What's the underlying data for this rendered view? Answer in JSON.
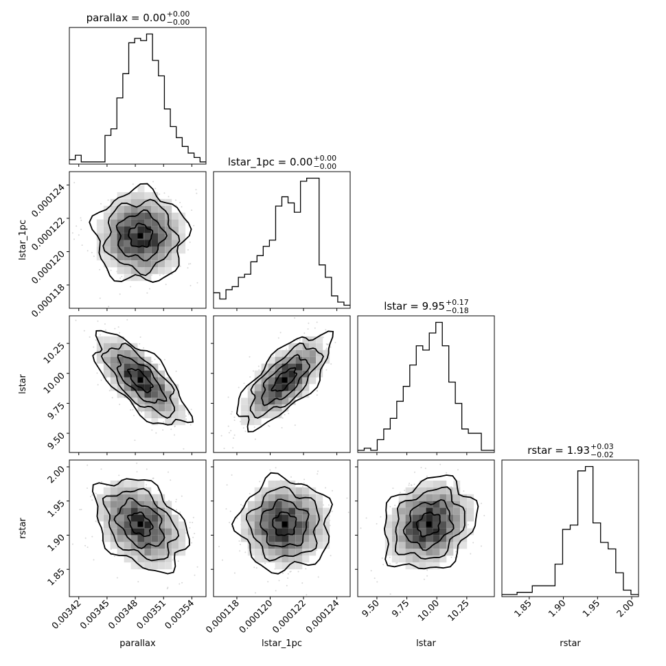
{
  "chart_data": {
    "type": "corner",
    "parameters": [
      {
        "name": "parallax",
        "range": [
          0.00341,
          0.003555
        ],
        "ticks": [
          "0.00342",
          "0.00345",
          "0.00348",
          "0.00351",
          "0.00354"
        ],
        "title_main": "parallax = 0.00",
        "title_plus": "+0.00",
        "title_minus": "−0.00",
        "median": 0.003485
      },
      {
        "name": "lstar_1pc",
        "range": [
          0.0001166,
          0.0001248
        ],
        "ticks": [
          "0.000118",
          "0.000120",
          "0.000122",
          "0.000124"
        ],
        "title_main": "lstar_1pc = 0.00",
        "title_plus": "+0.00",
        "title_minus": "−0.00",
        "median": 0.0001212
      },
      {
        "name": "lstar",
        "range": [
          9.34,
          10.48
        ],
        "ticks": [
          "9.50",
          "9.75",
          "10.00",
          "10.25"
        ],
        "title_main": "lstar = 9.95",
        "title_plus": "+0.17",
        "title_minus": "−0.18",
        "median": 9.95
      },
      {
        "name": "rstar",
        "range": [
          1.81,
          2.01
        ],
        "ticks": [
          "1.85",
          "1.90",
          "1.95",
          "2.00"
        ],
        "title_main": "rstar = 1.93",
        "title_plus": "+0.03",
        "title_minus": "−0.02",
        "median": 1.93
      }
    ],
    "histograms": [
      [
        2,
        4,
        1,
        1,
        1,
        1,
        13,
        16,
        30,
        41,
        55,
        57,
        56,
        59,
        47,
        40,
        25,
        17,
        12,
        8,
        5,
        3,
        1
      ],
      [
        5,
        3,
        6,
        7,
        10,
        11,
        15,
        17,
        20,
        22,
        33,
        36,
        34,
        31,
        41,
        42,
        42,
        14,
        10,
        4,
        2,
        1
      ],
      [
        1,
        2,
        1,
        6,
        11,
        16,
        24,
        31,
        41,
        50,
        48,
        56,
        61,
        50,
        33,
        23,
        11,
        9,
        9,
        1,
        1
      ],
      [
        1,
        1,
        2,
        2,
        5,
        5,
        5,
        15,
        31,
        33,
        58,
        60,
        34,
        25,
        22,
        11,
        3,
        1
      ]
    ],
    "pairs": [
      {
        "row": 1,
        "col": 0,
        "correlation": 0.0
      },
      {
        "row": 2,
        "col": 0,
        "correlation": -0.7
      },
      {
        "row": 2,
        "col": 1,
        "correlation": 0.7
      },
      {
        "row": 3,
        "col": 0,
        "correlation": -0.35
      },
      {
        "row": 3,
        "col": 1,
        "correlation": 0.0
      },
      {
        "row": 3,
        "col": 2,
        "correlation": 0.2
      }
    ],
    "contour_levels": [
      "0.5 sigma",
      "1 sigma",
      "1.5 sigma",
      "2 sigma"
    ],
    "grid": false,
    "colors": {
      "contour": "#000000",
      "density": "#000000",
      "points": "#bbbbbb"
    }
  }
}
